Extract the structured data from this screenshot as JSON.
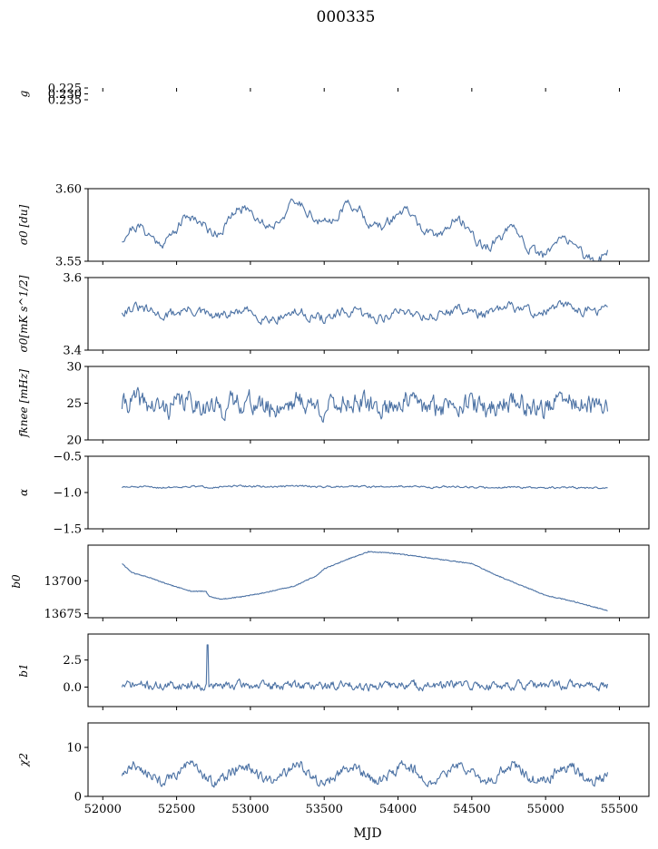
{
  "figure": {
    "title": "000335",
    "xlabel": "MJD"
  },
  "chart_data": [
    {
      "type": "line",
      "ylabel": "g",
      "xlim": [
        51900,
        55700
      ],
      "ylim": [
        0.225,
        0.235
      ],
      "yticks": [
        "0.225",
        "0.230",
        "0.235"
      ],
      "ytick_values": [
        0.225,
        0.23,
        0.235
      ],
      "series": [
        {
          "color": "#4c72a4",
          "gen": {
            "start": 52130,
            "end": 55420,
            "n": 330,
            "base": 0.2305,
            "drift": 0.0012,
            "wave": 0.0004,
            "noise": 0.0011,
            "seed": 11
          }
        },
        {
          "color": "#ff0000",
          "gen": {
            "start": 52110,
            "end": 55420,
            "n": 600,
            "base": 0.2308,
            "drift": 0.001,
            "wave": 0.0005,
            "noise": 0.0006,
            "seed": 5,
            "band": true
          }
        }
      ]
    },
    {
      "type": "line",
      "ylabel": "σ0 [du]",
      "xlim": [
        51900,
        55700
      ],
      "ylim": [
        3.55,
        3.6
      ],
      "yticks": [
        "3.55",
        "3.60"
      ],
      "ytick_values": [
        3.55,
        3.6
      ],
      "series": [
        {
          "color": "#4c72a4",
          "gen": {
            "start": 52130,
            "end": 55420,
            "n": 420,
            "base": 3.57,
            "drift": 0.013,
            "wave": 0.007,
            "noise": 0.005,
            "seed": 21
          }
        }
      ]
    },
    {
      "type": "line",
      "ylabel": "σ0[mK s^1/2]",
      "xlim": [
        51900,
        55700
      ],
      "ylim": [
        3.4,
        3.6
      ],
      "yticks": [
        "3.4",
        "3.6"
      ],
      "ytick_values": [
        3.4,
        3.6
      ],
      "series": [
        {
          "color": "#4c72a4",
          "gen": {
            "start": 52130,
            "end": 55420,
            "n": 420,
            "base": 3.505,
            "drift": -0.01,
            "wave": 0.008,
            "noise": 0.02,
            "seed": 31
          }
        }
      ]
    },
    {
      "type": "line",
      "ylabel": "fknee [mHz]",
      "xlim": [
        51900,
        55700
      ],
      "ylim": [
        20,
        30
      ],
      "yticks": [
        "20",
        "25",
        "30"
      ],
      "ytick_values": [
        20,
        25,
        30
      ],
      "series": [
        {
          "color": "#4c72a4",
          "gen": {
            "start": 52130,
            "end": 55420,
            "n": 520,
            "base": 24.8,
            "drift": 0,
            "wave": 0.5,
            "noise": 2.0,
            "seed": 41
          }
        }
      ]
    },
    {
      "type": "line",
      "ylabel": "α",
      "xlim": [
        51900,
        55700
      ],
      "ylim": [
        -1.5,
        -0.5
      ],
      "yticks": [
        "−1.5",
        "−1.0",
        "−0.5"
      ],
      "ytick_values": [
        -1.5,
        -1.0,
        -0.5
      ],
      "series": [
        {
          "color": "#4c72a4",
          "gen": {
            "start": 52130,
            "end": 55420,
            "n": 520,
            "base": -0.925,
            "drift": 0.01,
            "wave": 0.005,
            "noise": 0.018,
            "seed": 51
          }
        }
      ]
    },
    {
      "type": "line",
      "ylabel": "b0",
      "xlim": [
        51900,
        55700
      ],
      "ylim": [
        13672,
        13727
      ],
      "yticks": [
        "13675",
        "13700"
      ],
      "ytick_values": [
        13675,
        13700
      ],
      "series": [
        {
          "color": "#4c72a4",
          "anchors": [
            [
              52130,
              13713
            ],
            [
              52200,
              13706
            ],
            [
              52300,
              13703
            ],
            [
              52450,
              13697
            ],
            [
              52600,
              13692
            ],
            [
              52700,
              13692
            ],
            [
              52720,
              13688
            ],
            [
              52800,
              13686
            ],
            [
              52950,
              13688
            ],
            [
              53100,
              13691
            ],
            [
              53300,
              13696
            ],
            [
              53450,
              13704
            ],
            [
              53500,
              13709
            ],
            [
              53650,
              13716
            ],
            [
              53800,
              13722
            ],
            [
              53950,
              13721
            ],
            [
              54100,
              13719
            ],
            [
              54300,
              13716
            ],
            [
              54500,
              13713
            ],
            [
              54650,
              13705
            ],
            [
              54800,
              13698
            ],
            [
              55000,
              13689
            ],
            [
              55200,
              13684
            ],
            [
              55400,
              13678
            ],
            [
              55420,
              13677
            ]
          ],
          "gen": {
            "n": 600,
            "noise": 0.35,
            "seed": 61
          }
        }
      ]
    },
    {
      "type": "line",
      "ylabel": "b1",
      "xlim": [
        51900,
        55700
      ],
      "ylim": [
        -1.8,
        4.9
      ],
      "yticks": [
        "0.0",
        "2.5"
      ],
      "ytick_values": [
        0.0,
        2.5
      ],
      "series": [
        {
          "color": "#4c72a4",
          "gen": {
            "start": 52130,
            "end": 55420,
            "n": 560,
            "base": 0.15,
            "drift": 0,
            "wave": 0.05,
            "noise": 0.55,
            "seed": 71,
            "spike": [
              52710,
              3.9
            ]
          }
        }
      ]
    },
    {
      "type": "line",
      "ylabel": "χ2",
      "xlim": [
        51900,
        55700
      ],
      "ylim": [
        0,
        15
      ],
      "yticks": [
        "0",
        "10"
      ],
      "ytick_values": [
        0,
        10
      ],
      "xticks": [
        "52000",
        "52500",
        "53000",
        "53500",
        "54000",
        "54500",
        "55000",
        "55500"
      ],
      "xtick_values": [
        52000,
        52500,
        53000,
        53500,
        54000,
        54500,
        55000,
        55500
      ],
      "series": [
        {
          "color": "#4c72a4",
          "gen": {
            "start": 52130,
            "end": 55420,
            "n": 560,
            "base": 4.6,
            "drift": 0,
            "wave": 1.6,
            "noise": 1.5,
            "seed": 81,
            "period": 365,
            "floor": 0.2
          }
        }
      ]
    }
  ]
}
